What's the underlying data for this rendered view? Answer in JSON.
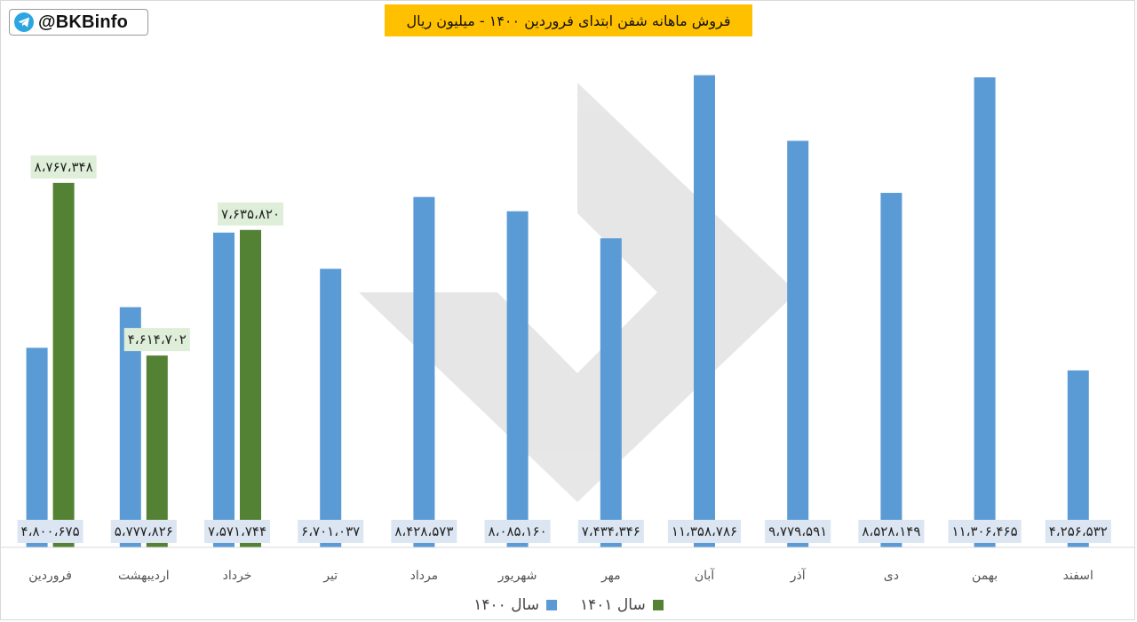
{
  "brand": {
    "handle": "@BKBinfo",
    "icon": "telegram-icon"
  },
  "colors": {
    "series_1400": "#5b9bd5",
    "series_1401": "#548235",
    "title_bg": "#ffc000",
    "label_bg": "#dfeed8"
  },
  "chart_data": {
    "type": "bar",
    "title": "فروش ماهانه شفن ابتدای فروردین ۱۴۰۰ - میلیون ریال",
    "xlabel": "",
    "ylabel": "",
    "categories": [
      "فروردین",
      "اردیبهشت",
      "خرداد",
      "تیر",
      "مرداد",
      "شهریور",
      "مهر",
      "آبان",
      "آذر",
      "دی",
      "بهمن",
      "اسفند"
    ],
    "series": [
      {
        "name": "سال ۱۴۰۰",
        "values": [
          4800675,
          5777826,
          7571744,
          6701037,
          8428573,
          8085160,
          7434346,
          11358786,
          9779591,
          8528149,
          11306465,
          4256532
        ],
        "labels": [
          "۴،۸۰۰،۶۷۵",
          "۵،۷۷۷،۸۲۶",
          "۷،۵۷۱،۷۴۴",
          "۶،۷۰۱،۰۳۷",
          "۸،۴۲۸،۵۷۳",
          "۸،۰۸۵،۱۶۰",
          "۷،۴۳۴،۳۴۶",
          "۱۱،۳۵۸،۷۸۶",
          "۹،۷۷۹،۵۹۱",
          "۸،۵۲۸،۱۴۹",
          "۱۱،۳۰۶،۴۶۵",
          "۴،۲۵۶،۵۳۲"
        ]
      },
      {
        "name": "سال ۱۴۰۱",
        "values": [
          8767348,
          4614702,
          7635820,
          null,
          null,
          null,
          null,
          null,
          null,
          null,
          null,
          null
        ],
        "labels": [
          "۸،۷۶۷،۳۴۸",
          "۴،۶۱۴،۷۰۲",
          "۷،۶۳۵،۸۲۰",
          null,
          null,
          null,
          null,
          null,
          null,
          null,
          null,
          null
        ]
      }
    ],
    "ylim": [
      0,
      11500000
    ],
    "grid": false,
    "legend": "bottom"
  }
}
